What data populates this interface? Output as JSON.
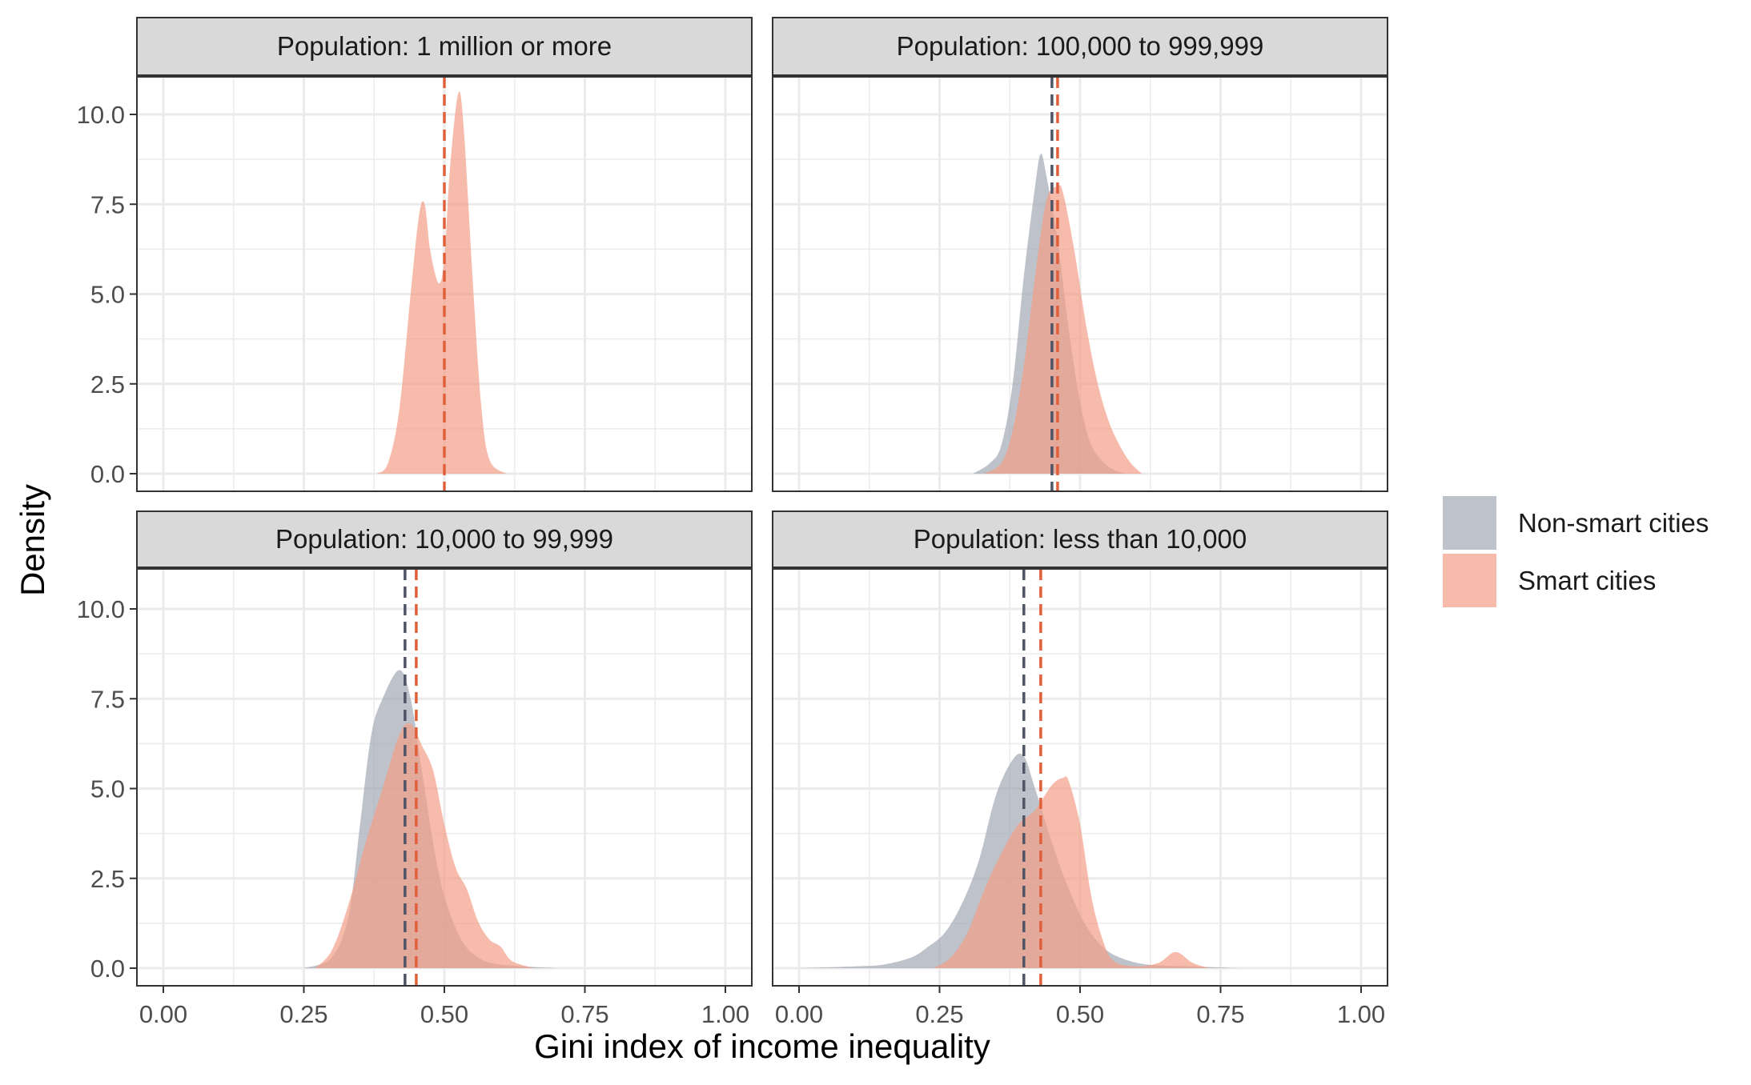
{
  "chart_data": {
    "type": "area",
    "subtype": "faceted density plot",
    "xlabel": "Gini index of income inequality",
    "ylabel": "Density",
    "xlim": [
      0,
      1
    ],
    "ylim": [
      0,
      11
    ],
    "x_ticks": [
      "0.00",
      "0.25",
      "0.50",
      "0.75",
      "1.00"
    ],
    "y_ticks": [
      "0.0",
      "2.5",
      "5.0",
      "7.5",
      "10.0"
    ],
    "grid": true,
    "legend": {
      "placement": "right",
      "entries": [
        {
          "label": "Non-smart cities",
          "color": "#a3a8b4"
        },
        {
          "label": "Smart cities",
          "color": "#f29e86"
        }
      ]
    },
    "colors": {
      "non_smart_fill": "#a3a8b4",
      "smart_fill": "#f29e86",
      "non_smart_mean_line": "#4f5466",
      "smart_mean_line": "#e0603c",
      "strip_background": "#d9d9d9",
      "gridline": "#ebebeb"
    },
    "panels": [
      {
        "strip": "Population: 1 million or more",
        "series": [
          {
            "name": "Smart cities",
            "mean": 0.5,
            "points": [
              [
                0.38,
                0
              ],
              [
                0.4,
                0.3
              ],
              [
                0.42,
                1.8
              ],
              [
                0.44,
                5.0
              ],
              [
                0.455,
                7.2
              ],
              [
                0.465,
                7.5
              ],
              [
                0.475,
                6.2
              ],
              [
                0.49,
                5.3
              ],
              [
                0.5,
                6.0
              ],
              [
                0.51,
                8.5
              ],
              [
                0.525,
                10.6
              ],
              [
                0.535,
                9.5
              ],
              [
                0.55,
                5.5
              ],
              [
                0.565,
                2.0
              ],
              [
                0.58,
                0.4
              ],
              [
                0.61,
                0
              ]
            ]
          }
        ]
      },
      {
        "strip": "Population: 100,000 to 999,999",
        "series": [
          {
            "name": "Non-smart cities",
            "mean": 0.45,
            "points": [
              [
                0.31,
                0
              ],
              [
                0.34,
                0.3
              ],
              [
                0.36,
                0.8
              ],
              [
                0.38,
                2.5
              ],
              [
                0.4,
                5.5
              ],
              [
                0.42,
                8.0
              ],
              [
                0.43,
                8.9
              ],
              [
                0.44,
                8.3
              ],
              [
                0.46,
                6.5
              ],
              [
                0.48,
                4.0
              ],
              [
                0.5,
                2.0
              ],
              [
                0.52,
                0.8
              ],
              [
                0.55,
                0.2
              ],
              [
                0.58,
                0
              ]
            ]
          },
          {
            "name": "Smart cities",
            "mean": 0.46,
            "points": [
              [
                0.33,
                0
              ],
              [
                0.36,
                0.3
              ],
              [
                0.38,
                1.2
              ],
              [
                0.4,
                3.0
              ],
              [
                0.42,
                5.5
              ],
              [
                0.44,
                7.6
              ],
              [
                0.46,
                8.0
              ],
              [
                0.47,
                7.8
              ],
              [
                0.49,
                6.2
              ],
              [
                0.51,
                4.2
              ],
              [
                0.53,
                2.6
              ],
              [
                0.55,
                1.5
              ],
              [
                0.57,
                0.8
              ],
              [
                0.59,
                0.3
              ],
              [
                0.61,
                0
              ]
            ]
          }
        ]
      },
      {
        "strip": "Population: 10,000 to 99,999",
        "series": [
          {
            "name": "Non-smart cities",
            "mean": 0.43,
            "points": [
              [
                0.25,
                0
              ],
              [
                0.3,
                0.3
              ],
              [
                0.33,
                1.5
              ],
              [
                0.35,
                4.0
              ],
              [
                0.37,
                6.5
              ],
              [
                0.39,
                7.5
              ],
              [
                0.42,
                8.3
              ],
              [
                0.44,
                7.5
              ],
              [
                0.46,
                5.5
              ],
              [
                0.48,
                3.5
              ],
              [
                0.5,
                2.0
              ],
              [
                0.53,
                0.8
              ],
              [
                0.56,
                0.3
              ],
              [
                0.6,
                0.1
              ],
              [
                0.7,
                0
              ]
            ]
          },
          {
            "name": "Smart cities",
            "mean": 0.45,
            "points": [
              [
                0.27,
                0
              ],
              [
                0.3,
                0.5
              ],
              [
                0.33,
                1.8
              ],
              [
                0.36,
                3.5
              ],
              [
                0.39,
                5.0
              ],
              [
                0.42,
                6.5
              ],
              [
                0.44,
                6.8
              ],
              [
                0.46,
                6.2
              ],
              [
                0.48,
                5.5
              ],
              [
                0.5,
                4.0
              ],
              [
                0.52,
                2.8
              ],
              [
                0.54,
                2.2
              ],
              [
                0.56,
                1.3
              ],
              [
                0.58,
                0.8
              ],
              [
                0.6,
                0.6
              ],
              [
                0.62,
                0.2
              ],
              [
                0.66,
                0
              ]
            ]
          }
        ]
      },
      {
        "strip": "Population: less than 10,000",
        "series": [
          {
            "name": "Non-smart cities",
            "mean": 0.4,
            "points": [
              [
                0.0,
                0
              ],
              [
                0.1,
                0.05
              ],
              [
                0.15,
                0.1
              ],
              [
                0.2,
                0.3
              ],
              [
                0.23,
                0.6
              ],
              [
                0.26,
                1.0
              ],
              [
                0.29,
                1.8
              ],
              [
                0.32,
                3.0
              ],
              [
                0.35,
                4.8
              ],
              [
                0.38,
                5.8
              ],
              [
                0.4,
                5.9
              ],
              [
                0.42,
                5.0
              ],
              [
                0.45,
                3.5
              ],
              [
                0.48,
                2.2
              ],
              [
                0.51,
                1.2
              ],
              [
                0.54,
                0.6
              ],
              [
                0.57,
                0.3
              ],
              [
                0.62,
                0.1
              ],
              [
                0.7,
                0.05
              ],
              [
                0.78,
                0
              ]
            ]
          },
          {
            "name": "Smart cities",
            "mean": 0.43,
            "points": [
              [
                0.24,
                0
              ],
              [
                0.27,
                0.3
              ],
              [
                0.3,
                1.0
              ],
              [
                0.33,
                2.2
              ],
              [
                0.36,
                3.2
              ],
              [
                0.39,
                4.0
              ],
              [
                0.42,
                4.4
              ],
              [
                0.45,
                5.1
              ],
              [
                0.47,
                5.3
              ],
              [
                0.48,
                5.2
              ],
              [
                0.5,
                4.0
              ],
              [
                0.52,
                2.0
              ],
              [
                0.54,
                0.8
              ],
              [
                0.56,
                0.2
              ],
              [
                0.6,
                0.05
              ],
              [
                0.64,
                0.15
              ],
              [
                0.67,
                0.45
              ],
              [
                0.7,
                0.15
              ],
              [
                0.73,
                0
              ]
            ]
          }
        ]
      }
    ]
  }
}
